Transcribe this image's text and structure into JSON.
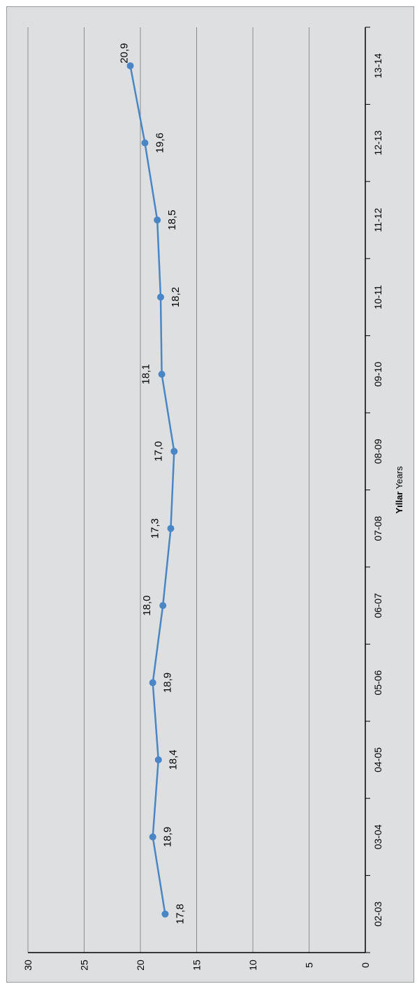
{
  "chart_data": {
    "type": "line",
    "orientation": "rotated-90",
    "categories": [
      "02-03",
      "03-04",
      "04-05",
      "05-06",
      "06-07",
      "07-08",
      "08-09",
      "09-10",
      "10-11",
      "11-12",
      "12-13",
      "13-14"
    ],
    "series": [
      {
        "values": [
          17.8,
          18.9,
          18.4,
          18.9,
          18.0,
          17.3,
          17.0,
          18.1,
          18.2,
          18.5,
          19.6,
          20.9
        ]
      }
    ],
    "data_labels": [
      "17,8",
      "18,9",
      "18,4",
      "18,9",
      "18,0",
      "17,3",
      "17,0",
      "18,1",
      "18,2",
      "18,5",
      "19,6",
      "20,9"
    ],
    "y_ticks": [
      "0",
      "5",
      "10",
      "15",
      "20",
      "25",
      "30"
    ],
    "ylim": [
      0,
      30
    ],
    "xlabel_bold": "Yıllar",
    "xlabel_rest": " Years",
    "grid": true,
    "legend": "none",
    "colors": {
      "line": "#4a86c5",
      "background": "#dedfe0",
      "grid": "#8c8c8c"
    }
  }
}
